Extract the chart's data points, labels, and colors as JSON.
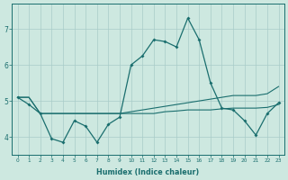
{
  "xlabel": "Humidex (Indice chaleur)",
  "background_color": "#cde8e0",
  "grid_color": "#a8ccc8",
  "line_color": "#1a6e6e",
  "x": [
    0,
    1,
    2,
    3,
    4,
    5,
    6,
    7,
    8,
    9,
    10,
    11,
    12,
    13,
    14,
    15,
    16,
    17,
    18,
    19,
    20,
    21,
    22,
    23
  ],
  "main_line": [
    5.1,
    4.9,
    4.65,
    3.95,
    3.85,
    4.45,
    4.3,
    3.85,
    4.35,
    4.55,
    6.0,
    6.25,
    6.7,
    6.65,
    6.5,
    7.3,
    6.7,
    5.5,
    4.8,
    4.75,
    4.45,
    4.05,
    4.65,
    4.95
  ],
  "upper_line": [
    5.1,
    5.1,
    4.65,
    4.65,
    4.65,
    4.65,
    4.65,
    4.65,
    4.65,
    4.65,
    4.7,
    4.75,
    4.8,
    4.85,
    4.9,
    4.95,
    5.0,
    5.05,
    5.1,
    5.15,
    5.15,
    5.15,
    5.2,
    5.4
  ],
  "lower_line": [
    5.1,
    5.1,
    4.65,
    4.65,
    4.65,
    4.65,
    4.65,
    4.65,
    4.65,
    4.65,
    4.65,
    4.65,
    4.65,
    4.7,
    4.72,
    4.75,
    4.75,
    4.75,
    4.78,
    4.8,
    4.8,
    4.8,
    4.82,
    4.9
  ],
  "ylim": [
    3.5,
    7.7
  ],
  "xlim": [
    -0.5,
    23.5
  ],
  "yticks": [
    4,
    5,
    6,
    7
  ],
  "xticks": [
    0,
    1,
    2,
    3,
    4,
    5,
    6,
    7,
    8,
    9,
    10,
    11,
    12,
    13,
    14,
    15,
    16,
    17,
    18,
    19,
    20,
    21,
    22,
    23
  ]
}
